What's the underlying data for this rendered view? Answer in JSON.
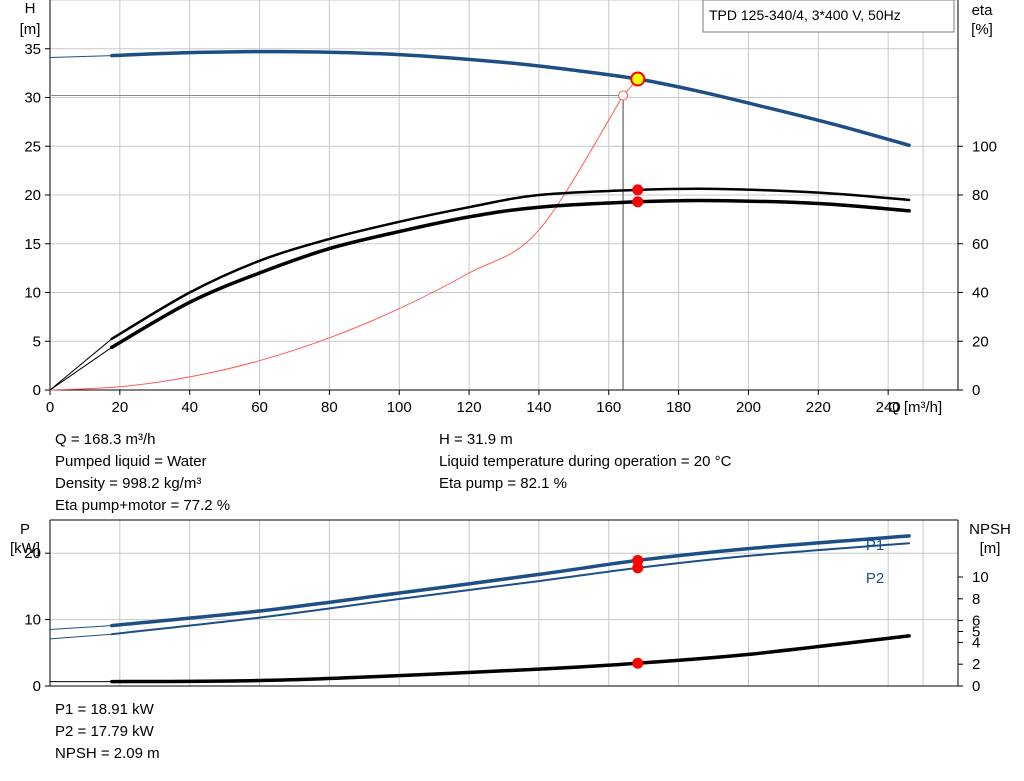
{
  "title_box": "TPD 125-340/4, 3*400 V, 50Hz",
  "info_left": [
    "Q = 168.3 m³/h",
    "Pumped liquid = Water",
    "Density = 998.2 kg/m³",
    "Eta pump+motor = 77.2 %"
  ],
  "info_right": [
    "H = 31.9 m",
    "Liquid temperature during operation = 20 °C",
    "Eta pump = 82.1 %"
  ],
  "info_bottom": [
    "P1 = 18.91 kW",
    "P2 = 17.79 kW",
    "NPSH = 2.09 m"
  ],
  "colors": {
    "curve_blue": "#1d4f87",
    "marker_red": "#ff0000",
    "marker_yellow": "#ffff00",
    "system_curve": "#ff5a5a",
    "grid": "#c8c8c8"
  },
  "chart_data": [
    {
      "type": "line",
      "title": "TPD 125-340/4, 3*400 V, 50Hz",
      "xlabel": "Q [m³/h]",
      "ylabel": "H\n[m]",
      "ylabel_right": "eta\n[%]",
      "xlim": [
        0,
        260
      ],
      "xticks": [
        0,
        20,
        40,
        60,
        80,
        100,
        120,
        140,
        160,
        180,
        200,
        220,
        240
      ],
      "ylim": [
        0,
        40
      ],
      "yticks": [
        0,
        5,
        10,
        15,
        20,
        25,
        30,
        35
      ],
      "ylim_right": [
        0,
        160
      ],
      "yticks_right": [
        0,
        20,
        40,
        60,
        80,
        100
      ],
      "grid": true,
      "series": [
        {
          "axis": "left",
          "x": [
            17.7,
            40,
            70,
            100,
            130,
            150,
            168.3,
            185,
            205,
            225,
            246
          ],
          "values": [
            34.3,
            34.6,
            34.7,
            34.4,
            33.6,
            32.8,
            31.9,
            30.7,
            29.0,
            27.2,
            25.1
          ],
          "extension": {
            "x": [
              0,
              17.7
            ],
            "values": [
              34.1,
              34.3
            ]
          }
        },
        {
          "axis": "right",
          "x": [
            17.7,
            40,
            60,
            80,
            100,
            120,
            140,
            168.3,
            190,
            220,
            246
          ],
          "values": [
            21,
            40,
            53,
            62,
            69,
            75,
            80,
            82.1,
            82.5,
            81,
            78
          ],
          "extension": {
            "x": [
              0,
              17.7
            ],
            "values": [
              0,
              21
            ]
          }
        },
        {
          "axis": "right",
          "x": [
            17.7,
            40,
            60,
            80,
            100,
            120,
            140,
            168.3,
            190,
            220,
            246
          ],
          "values": [
            17.5,
            36,
            48,
            58,
            65,
            71,
            75,
            77.2,
            77.7,
            76.5,
            73.5
          ],
          "extension": {
            "x": [
              0,
              17.7
            ],
            "values": [
              0,
              17.5
            ]
          }
        },
        {
          "axis": "left",
          "x": [
            0,
            20,
            40,
            60,
            80,
            100,
            120,
            140,
            164.1
          ],
          "values": [
            0,
            0.33,
            1.34,
            3.01,
            5.35,
            8.35,
            12.0,
            16.4,
            30.2
          ]
        }
      ],
      "operating_point": {
        "x": 168.3,
        "H": 31.9,
        "eta_pump": 82.1,
        "eta_total": 77.2
      },
      "reference_point": {
        "x": 164.1,
        "H": 30.2
      }
    },
    {
      "type": "line",
      "xlim": [
        0,
        260
      ],
      "ylabel": "P\n[kW]",
      "ylabel_right": "NPSH\n[m]",
      "ylim": [
        0,
        25
      ],
      "yticks": [
        0,
        10,
        20
      ],
      "yticks_right": [
        0,
        2,
        4,
        5,
        6,
        8,
        10
      ],
      "grid": true,
      "series": [
        {
          "name": "P1",
          "axis": "left",
          "x": [
            17.7,
            60,
            100,
            140,
            168.3,
            200,
            246
          ],
          "values": [
            9.1,
            11.3,
            14.0,
            16.8,
            18.91,
            20.7,
            22.6
          ],
          "extension": {
            "x": [
              0,
              17.7
            ],
            "values": [
              8.5,
              9.1
            ]
          }
        },
        {
          "name": "P2",
          "axis": "left",
          "x": [
            17.7,
            60,
            100,
            140,
            168.3,
            200,
            246
          ],
          "values": [
            7.8,
            10.3,
            13.1,
            15.8,
            17.79,
            19.6,
            21.5
          ],
          "extension": {
            "x": [
              0,
              17.7
            ],
            "values": [
              7.1,
              7.8
            ]
          }
        },
        {
          "name": "NPSH",
          "axis": "right",
          "x": [
            17.7,
            60,
            100,
            140,
            168.3,
            200,
            246
          ],
          "values": [
            0.4,
            0.5,
            0.95,
            1.55,
            2.09,
            2.9,
            4.6
          ],
          "extension": {
            "x": [
              0,
              17.7
            ],
            "values": [
              0.4,
              0.4
            ]
          }
        }
      ],
      "operating_point": {
        "x": 168.3,
        "P1": 18.91,
        "P2": 17.79,
        "NPSH": 2.09
      }
    }
  ]
}
